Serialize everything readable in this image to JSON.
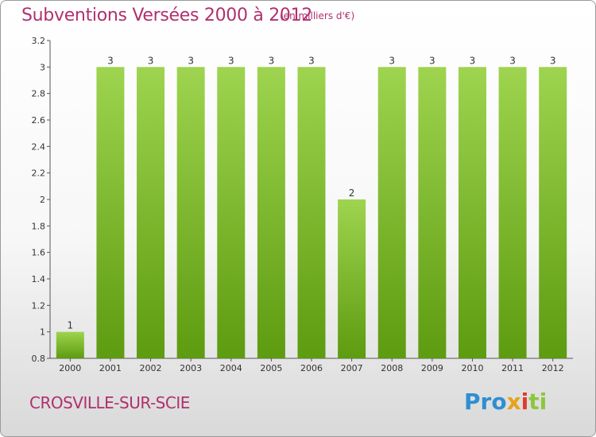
{
  "title": "Subventions Versées 2000 à 2012",
  "unit": "(en milliers d'€)",
  "city": "CROSVILLE-SUR-SCIE",
  "logo": "Proxiti",
  "colors": {
    "title": "#b0306e",
    "bar_top": "#9ed44f",
    "bar_bottom": "#5d9b10",
    "axis": "#555555",
    "grid": "#cccccc"
  },
  "chart_data": {
    "type": "bar",
    "title": "Subventions Versées 2000 à 2012",
    "xlabel": "",
    "ylabel": "",
    "categories": [
      "2000",
      "2001",
      "2002",
      "2003",
      "2004",
      "2005",
      "2006",
      "2007",
      "2008",
      "2009",
      "2010",
      "2011",
      "2012"
    ],
    "values": [
      1,
      3,
      3,
      3,
      3,
      3,
      3,
      2,
      3,
      3,
      3,
      3,
      3
    ],
    "data_labels": [
      "1",
      "3",
      "3",
      "3",
      "3",
      "3",
      "3",
      "2",
      "3",
      "3",
      "3",
      "3",
      "3"
    ],
    "yticks": [
      0.8,
      1,
      1.2,
      1.4,
      1.6,
      1.8,
      2,
      2.2,
      2.4,
      2.6,
      2.8,
      3,
      3.2
    ],
    "ytick_labels": [
      "0.8",
      "1",
      "1.2",
      "1.4",
      "1.6",
      "1.8",
      "2",
      "2.2",
      "2.4",
      "2.6",
      "2.8",
      "3",
      "3.2"
    ],
    "ylim": [
      0.8,
      3.2
    ],
    "grid": false,
    "legend": "none"
  }
}
